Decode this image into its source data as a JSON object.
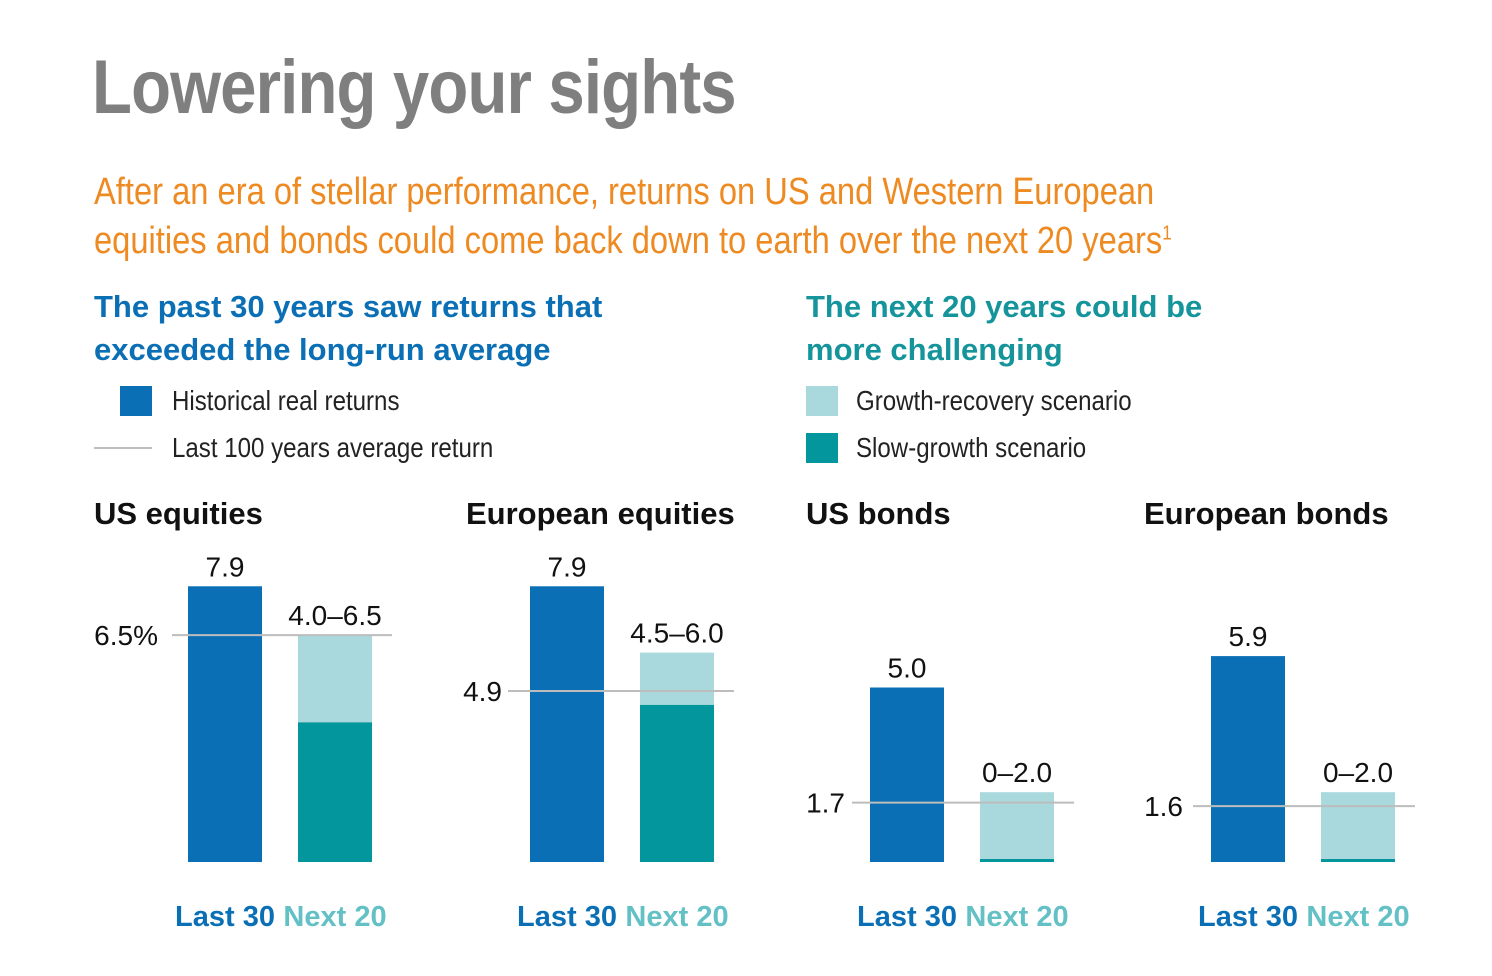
{
  "header": {
    "title": "Lowering your sights",
    "subtitle": "After an era of stellar performance, returns on US and Western European equities and bonds could come back down to earth over the next 20 years",
    "subtitle_footnote": "1"
  },
  "left_section": {
    "heading_line1": "The past 30 years saw returns that",
    "heading_line2": "exceeded the long-run average",
    "legend": [
      {
        "label": "Historical real returns",
        "kind": "swatch",
        "color": "#0a6fb4"
      },
      {
        "label": "Last 100 years average return",
        "kind": "line",
        "color": "#bdbdbd"
      }
    ]
  },
  "right_section": {
    "heading_line1": "The next 20 years could be",
    "heading_line2": "more challenging",
    "legend": [
      {
        "label": "Growth-recovery scenario",
        "kind": "swatch",
        "color": "#a9d9dc"
      },
      {
        "label": "Slow-growth scenario",
        "kind": "swatch",
        "color": "#04969d"
      }
    ]
  },
  "colors": {
    "historical": "#0a6fb4",
    "growth_recovery": "#a9d9dc",
    "slow_growth": "#04969d",
    "average_line": "#bdbdbd",
    "last30_label": "#0a6fb4",
    "next20_label": "#63c1c6"
  },
  "chart_data": [
    {
      "type": "bar",
      "title": "US equities",
      "categories": [
        "Last 30",
        "Next 20"
      ],
      "historical": 7.9,
      "historical_label": "7.9",
      "next20_low": 4.0,
      "next20_high": 6.5,
      "next20_label": "4.0–6.5",
      "average": 6.5,
      "average_label": "6.5%"
    },
    {
      "type": "bar",
      "title": "European equities",
      "categories": [
        "Last 30",
        "Next 20"
      ],
      "historical": 7.9,
      "historical_label": "7.9",
      "next20_low": 4.5,
      "next20_high": 6.0,
      "next20_label": "4.5–6.0",
      "average": 4.9,
      "average_label": "4.9"
    },
    {
      "type": "bar",
      "title": "US bonds",
      "categories": [
        "Last 30",
        "Next 20"
      ],
      "historical": 5.0,
      "historical_label": "5.0",
      "next20_low": 0,
      "next20_high": 2.0,
      "next20_label": "0–2.0",
      "average": 1.7,
      "average_label": "1.7"
    },
    {
      "type": "bar",
      "title": "European bonds",
      "categories": [
        "Last 30",
        "Next 20"
      ],
      "historical": 5.9,
      "historical_label": "5.9",
      "next20_low": 0,
      "next20_high": 2.0,
      "next20_label": "0–2.0",
      "average": 1.6,
      "average_label": "1.6"
    }
  ]
}
